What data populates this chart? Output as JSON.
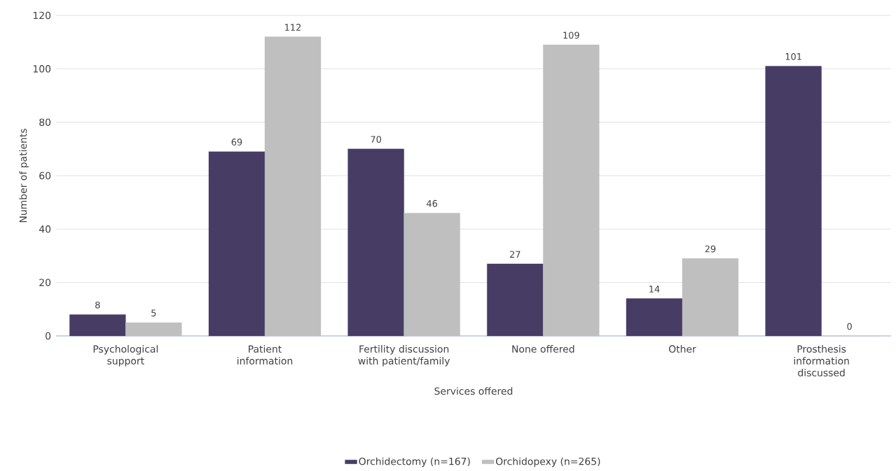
{
  "chart_data": {
    "type": "bar",
    "xlabel": "Services offered",
    "ylabel": "Number of patients",
    "categories": [
      "Psychological support",
      "Patient information",
      "Fertility discussion with patient/family",
      "None offered",
      "Other",
      "Prosthesis information discussed"
    ],
    "series": [
      {
        "name": "Orchidectomy (n=167)",
        "color": "#463c64",
        "values": [
          8,
          69,
          70,
          27,
          14,
          101
        ]
      },
      {
        "name": "Orchidopexy (n=265)",
        "color": "#bfbfbf",
        "values": [
          5,
          112,
          46,
          109,
          29,
          0
        ]
      }
    ],
    "ylim": [
      0,
      120
    ],
    "yticks": [
      0,
      20,
      40,
      60,
      80,
      100,
      120
    ],
    "grid": "y",
    "legend": "bottom",
    "data_labels": true
  }
}
